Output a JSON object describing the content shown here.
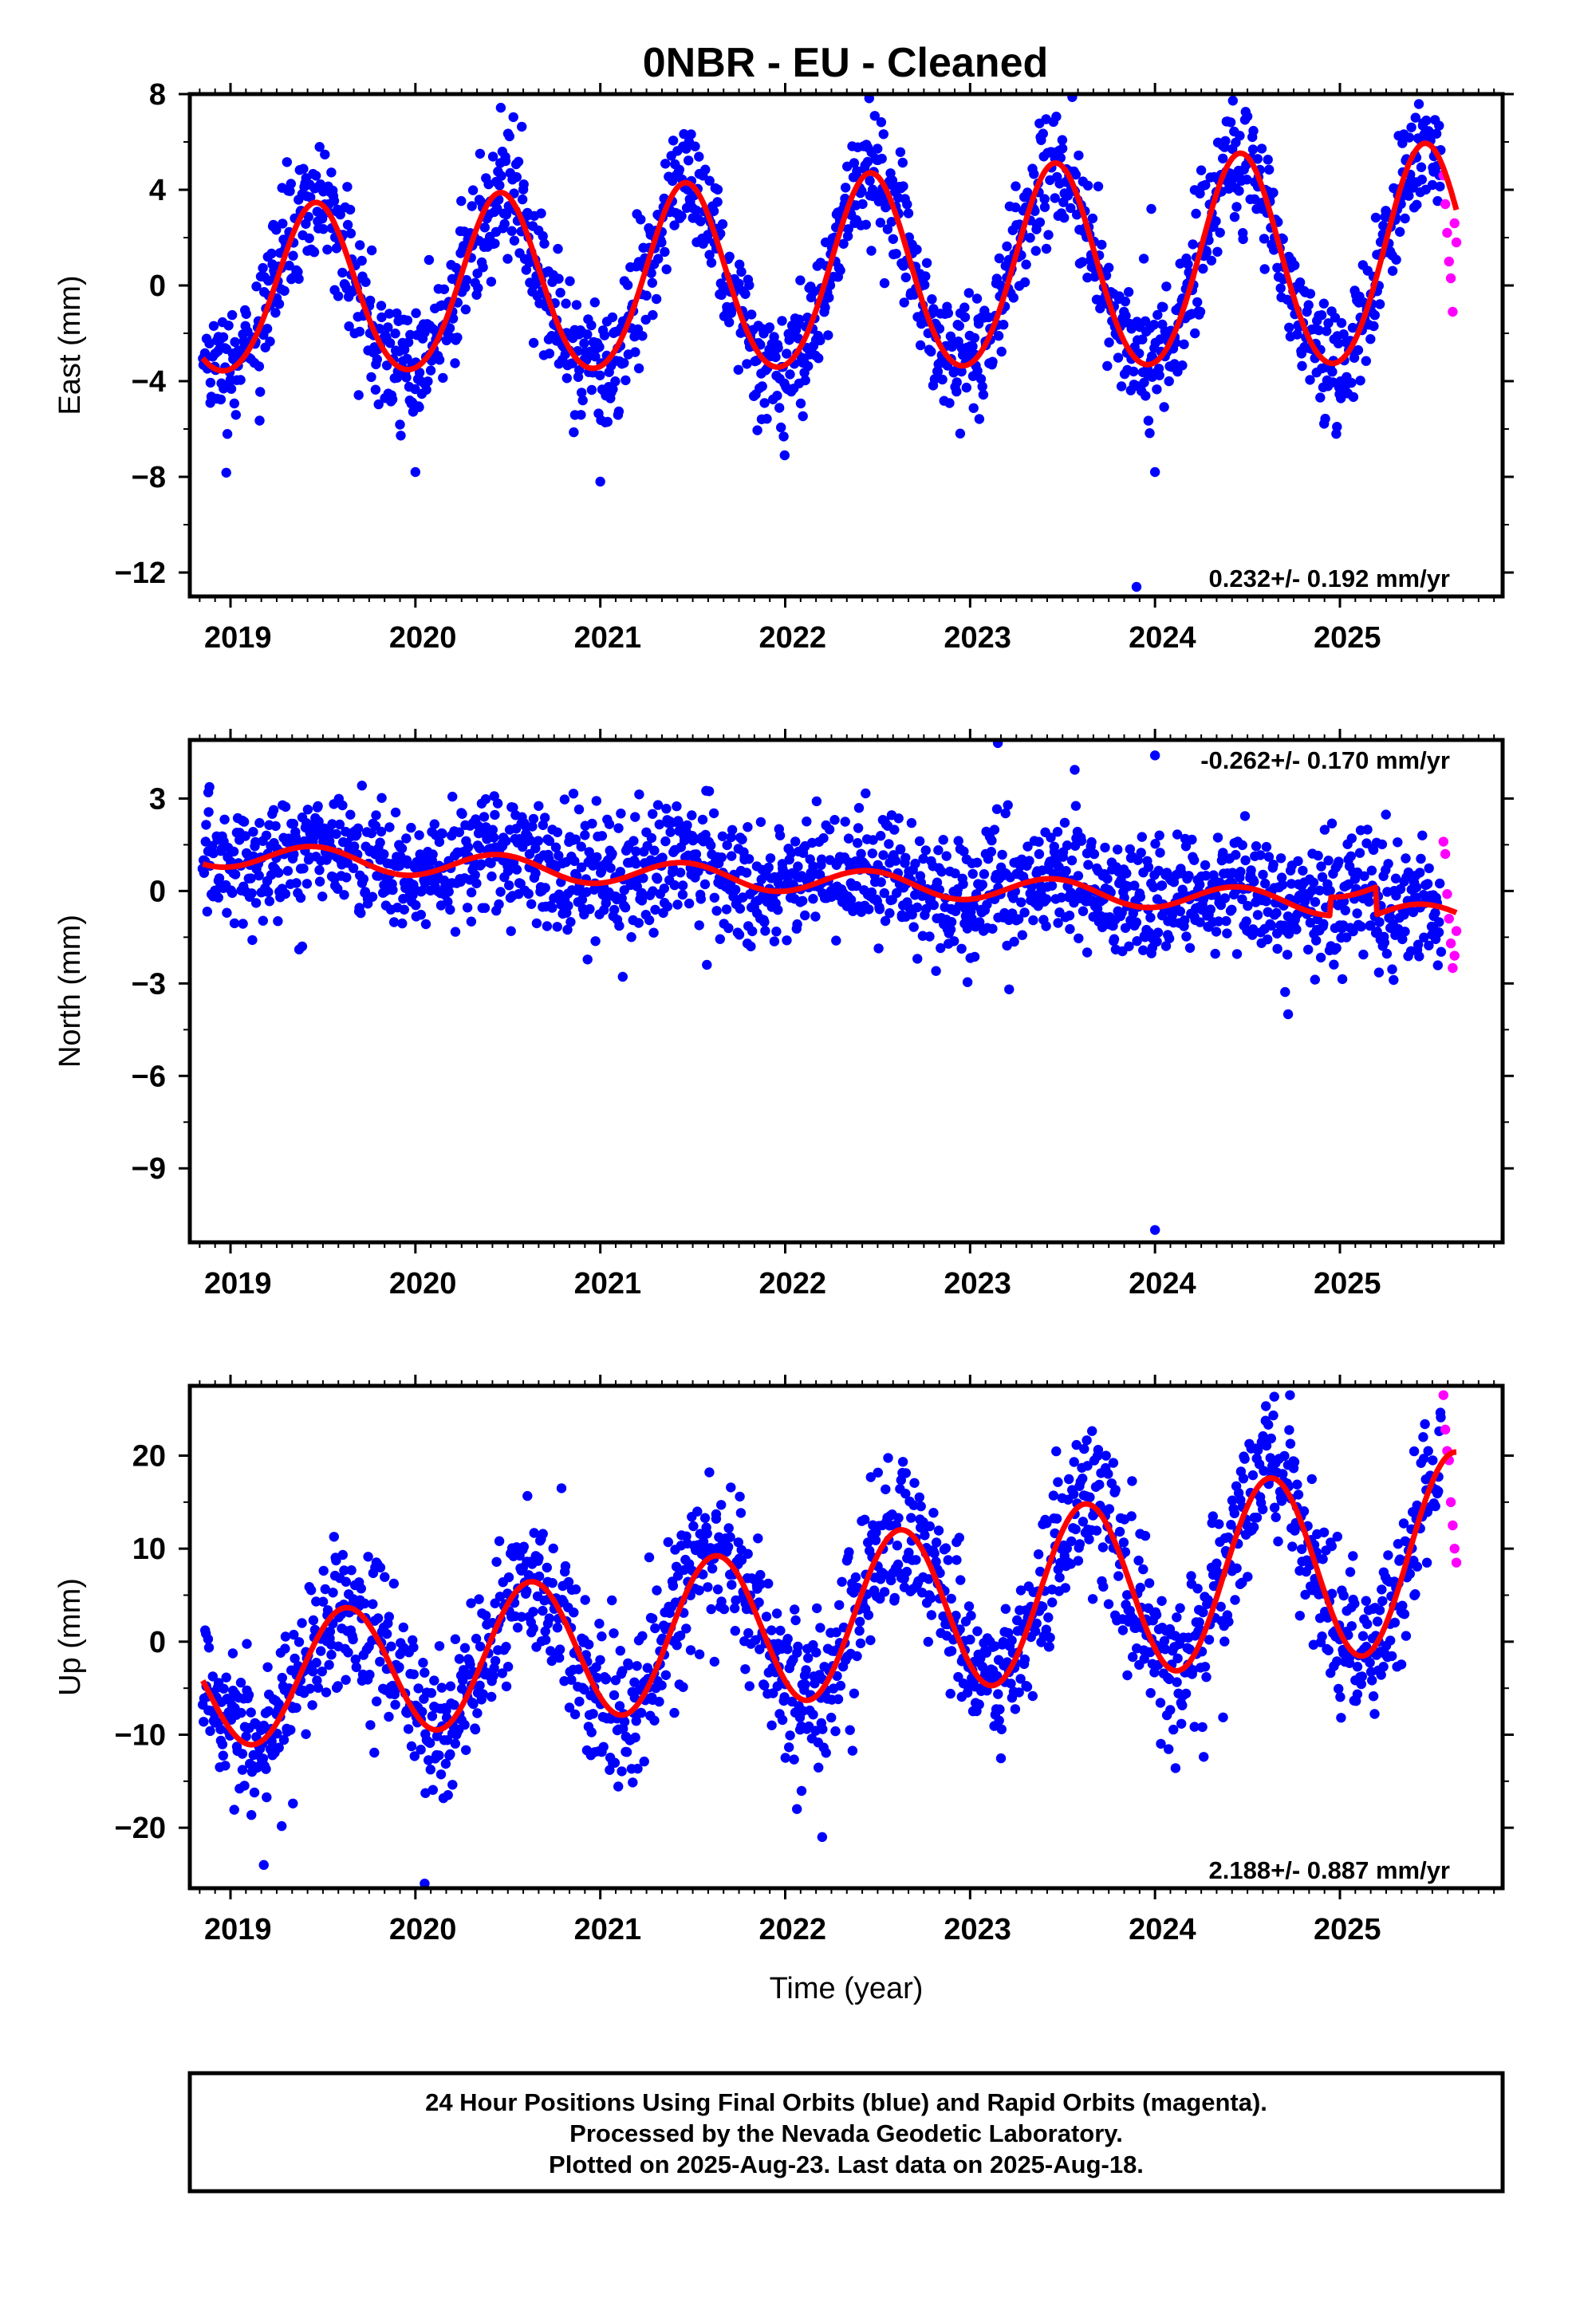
{
  "title": "0NBR  - EU - Cleaned",
  "colors": {
    "final": "#0000ff",
    "rapid": "#ff00ff",
    "model": "#ff0000"
  },
  "chart_data": [
    {
      "type": "scatter",
      "ylabel": "East (mm)",
      "xlabel": "",
      "xlim": [
        2018.78,
        2025.88
      ],
      "ylim": [
        -13.0,
        8.0
      ],
      "yticks": [
        8,
        4,
        0,
        -4,
        -8,
        -12
      ],
      "xticks": [
        2019,
        2020,
        2021,
        2022,
        2023,
        2024,
        2025
      ],
      "xtick_labels": [
        "2019",
        "2020",
        "2021",
        "2022",
        "2023",
        "2024",
        "2025"
      ],
      "rate_text": "0.232+/- 0.192 mm/yr",
      "rate_pos": "bottom-right",
      "model": {
        "offset": 0.3,
        "trend": 0.232,
        "t0": 2022.2,
        "amp": 4.0,
        "amp_slope": 0.18,
        "phase_peak": 2019.46,
        "amp2": 0.3
      },
      "noise_sd": 1.3,
      "final_range": [
        2018.85,
        2025.55
      ],
      "rapid": {
        "x": [
          2025.56,
          2025.57,
          2025.58,
          2025.59,
          2025.6,
          2025.61,
          2025.62,
          2025.63
        ],
        "y": [
          4.6,
          3.4,
          2.2,
          1.0,
          0.3,
          -1.1,
          2.6,
          1.8
        ]
      },
      "outliers": {
        "x": [
          2020.0,
          2021.0,
          2023.9,
          2024.0,
          2023.98
        ],
        "y": [
          -7.8,
          -8.2,
          -12.6,
          -7.8,
          3.2
        ]
      }
    },
    {
      "type": "scatter",
      "ylabel": "North (mm)",
      "xlabel": "",
      "xlim": [
        2018.78,
        2025.88
      ],
      "ylim": [
        -11.4,
        4.9
      ],
      "yticks": [
        3,
        0,
        -3,
        -6,
        -9
      ],
      "xticks": [
        2019,
        2020,
        2021,
        2022,
        2023,
        2024,
        2025
      ],
      "xtick_labels": [
        "2019",
        "2020",
        "2021",
        "2022",
        "2023",
        "2024",
        "2025"
      ],
      "rate_text": "-0.262+/- 0.170 mm/yr",
      "rate_pos": "top-right",
      "model": {
        "offset": 1.2,
        "trend": -0.262,
        "t0": 2018.85,
        "amp": 0.4,
        "amp_slope": 0.0,
        "phase_peak": 2019.45,
        "amp2": 0.0,
        "steps": [
          [
            2024.95,
            0.6
          ],
          [
            2025.2,
            -0.9
          ]
        ]
      },
      "noise_sd": 1.0,
      "final_range": [
        2018.85,
        2025.55
      ],
      "rapid": {
        "x": [
          2025.56,
          2025.57,
          2025.58,
          2025.59,
          2025.6,
          2025.61,
          2025.62,
          2025.63
        ],
        "y": [
          1.6,
          1.2,
          -0.1,
          -0.9,
          -1.7,
          -2.5,
          -2.1,
          -1.3
        ]
      },
      "outliers": {
        "x": [
          2023.15,
          2024.0,
          2024.0,
          2024.72,
          2018.88
        ],
        "y": [
          4.8,
          -11.0,
          4.4,
          -4.0,
          3.2
        ]
      }
    },
    {
      "type": "scatter",
      "ylabel": "Up (mm)",
      "xlabel": "Time (year)",
      "xlim": [
        2018.78,
        2025.88
      ],
      "ylim": [
        -26.5,
        27.5
      ],
      "yticks": [
        20,
        10,
        0,
        -10,
        -20
      ],
      "xticks": [
        2019,
        2020,
        2021,
        2022,
        2023,
        2024,
        2025
      ],
      "xtick_labels": [
        "2019",
        "2020",
        "2021",
        "2022",
        "2023",
        "2024",
        "2025"
      ],
      "rate_text": "2.188+/- 0.887 mm/yr",
      "rate_pos": "bottom-right",
      "model": {
        "offset": -5.0,
        "trend": 2.188,
        "t0": 2018.85,
        "amp": 6.5,
        "amp_slope": 0.6,
        "phase_peak": 2019.62,
        "amp2": 0.0
      },
      "noise_sd": 4.2,
      "final_range": [
        2018.85,
        2025.55
      ],
      "rapid": {
        "x": [
          2025.56,
          2025.57,
          2025.58,
          2025.59,
          2025.6,
          2025.61,
          2025.62,
          2025.63
        ],
        "y": [
          26.5,
          22.8,
          20.5,
          19.5,
          15.0,
          12.5,
          10.0,
          8.5
        ]
      },
      "outliers": {
        "x": [
          2019.18,
          2020.05,
          2024.73,
          2022.2
        ],
        "y": [
          -24.0,
          -26.0,
          26.5,
          -21.0
        ]
      }
    }
  ],
  "footer": {
    "line1": "24 Hour Positions Using Final Orbits (blue) and Rapid Orbits (magenta).",
    "line2": "Processed by the Nevada Geodetic Laboratory.",
    "line3": "Plotted on 2025-Aug-23. Last data on 2025-Aug-18."
  }
}
